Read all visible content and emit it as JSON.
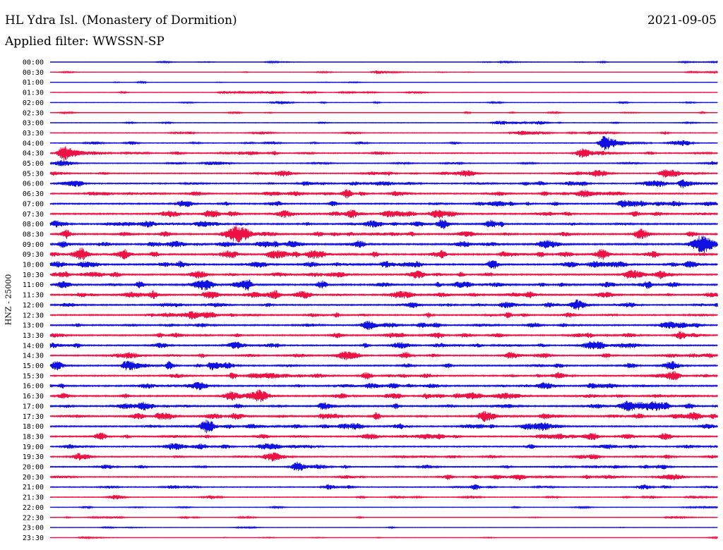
{
  "header": {
    "title": "HL Ydra Isl. (Monastery of Dormition)",
    "date": "2021-09-05",
    "filter": "Applied filter: WWSSN-SP",
    "channel_label": "HNZ - 25000"
  },
  "chart_data": {
    "type": "line",
    "title": "HL Ydra Isl. (Monastery of Dormition)",
    "subtitle": "Applied filter: WWSSN-SP",
    "ylabel": "HNZ - 25000",
    "xlabel": "",
    "grid": false,
    "legend": "none",
    "colors": {
      "odd_rows": "#1010e0",
      "even_rows": "#ee1144"
    },
    "row_labels": [
      "00:00",
      "00:30",
      "01:00",
      "01:30",
      "02:00",
      "02:30",
      "03:00",
      "03:30",
      "04:00",
      "04:30",
      "05:00",
      "05:30",
      "06:00",
      "06:30",
      "07:00",
      "07:30",
      "08:00",
      "08:30",
      "09:00",
      "09:30",
      "10:00",
      "10:30",
      "11:00",
      "11:30",
      "12:00",
      "12:30",
      "13:00",
      "13:30",
      "14:00",
      "14:30",
      "15:00",
      "15:30",
      "16:00",
      "16:30",
      "17:00",
      "17:30",
      "18:00",
      "18:30",
      "19:00",
      "19:30",
      "20:00",
      "20:30",
      "21:00",
      "21:30",
      "22:00",
      "22:30",
      "23:00",
      "23:30"
    ],
    "noise_level": [
      0.15,
      0.15,
      0.15,
      0.2,
      0.2,
      0.2,
      0.25,
      0.3,
      0.35,
      0.45,
      0.35,
      0.45,
      0.5,
      0.55,
      0.55,
      0.6,
      0.6,
      0.6,
      0.65,
      0.65,
      0.6,
      0.6,
      0.65,
      0.6,
      0.55,
      0.55,
      0.55,
      0.55,
      0.55,
      0.55,
      0.55,
      0.55,
      0.6,
      0.6,
      0.6,
      0.6,
      0.55,
      0.55,
      0.5,
      0.5,
      0.45,
      0.45,
      0.4,
      0.3,
      0.2,
      0.2,
      0.15,
      0.15
    ],
    "events": [
      {
        "row": "00:00",
        "t": 0.33,
        "amp": 0.35
      },
      {
        "row": "00:00",
        "t": 0.68,
        "amp": 0.4
      },
      {
        "row": "00:00",
        "t": 0.95,
        "amp": 0.3
      },
      {
        "row": "00:30",
        "t": 0.49,
        "amp": 0.9
      },
      {
        "row": "00:30",
        "t": 0.96,
        "amp": 0.35
      },
      {
        "row": "01:30",
        "t": 0.26,
        "amp": 0.6
      },
      {
        "row": "03:00",
        "t": 0.67,
        "amp": 0.7
      },
      {
        "row": "03:30",
        "t": 0.71,
        "amp": 0.7
      },
      {
        "row": "04:00",
        "t": 0.83,
        "amp": 3.5
      },
      {
        "row": "04:30",
        "t": 0.02,
        "amp": 3.0
      },
      {
        "row": "04:30",
        "t": 0.8,
        "amp": 1.2
      },
      {
        "row": "05:30",
        "t": 0.31,
        "amp": 0.6
      },
      {
        "row": "05:30",
        "t": 0.92,
        "amp": 1.8
      },
      {
        "row": "06:00",
        "t": 0.95,
        "amp": 1.4
      },
      {
        "row": "07:00",
        "t": 0.86,
        "amp": 1.6
      },
      {
        "row": "07:30",
        "t": 0.35,
        "amp": 1.0
      },
      {
        "row": "09:30",
        "t": 0.33,
        "amp": 1.2
      },
      {
        "row": "09:30",
        "t": 0.39,
        "amp": 1.4
      },
      {
        "row": "09:30",
        "t": 0.68,
        "amp": 1.2
      },
      {
        "row": "10:00",
        "t": 0.43,
        "amp": 0.7
      },
      {
        "row": "17:00",
        "t": 0.41,
        "amp": 1.0
      },
      {
        "row": "17:30",
        "t": 0.65,
        "amp": 1.3
      },
      {
        "row": "17:30",
        "t": 0.74,
        "amp": 1.3
      },
      {
        "row": "18:00",
        "t": 0.3,
        "amp": 1.0
      },
      {
        "row": "21:30",
        "t": 0.96,
        "amp": 0.6
      },
      {
        "row": "22:30",
        "t": 0.93,
        "amp": 0.6
      },
      {
        "row": "23:30",
        "t": 0.05,
        "amp": 0.5
      }
    ]
  }
}
